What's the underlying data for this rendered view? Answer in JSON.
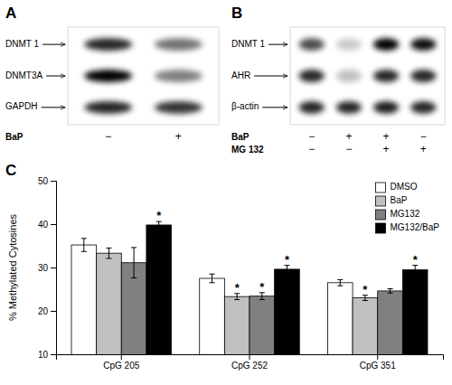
{
  "chart_data": [
    {
      "type": "blot",
      "title": "A",
      "categories": [
        "DNMT 1",
        "DNMT3A",
        "GAPDH"
      ],
      "conditions": [
        {
          "name": "BaP",
          "labels": [
            "−",
            "+"
          ]
        }
      ],
      "values": [
        [
          0.85,
          0.55
        ],
        [
          1.0,
          0.5
        ],
        [
          0.85,
          0.8
        ]
      ]
    },
    {
      "type": "blot",
      "title": "B",
      "categories": [
        "DNMT 1",
        "AHR",
        "β-actin"
      ],
      "conditions": [
        {
          "name": "BaP",
          "labels": [
            "−",
            "+",
            "+",
            "−"
          ]
        },
        {
          "name": "MG 132",
          "labels": [
            "−",
            "−",
            "+",
            "+"
          ]
        }
      ],
      "values": [
        [
          0.7,
          0.2,
          1.0,
          0.95
        ],
        [
          0.85,
          0.25,
          0.85,
          0.85
        ],
        [
          0.85,
          0.85,
          0.88,
          0.85
        ]
      ]
    },
    {
      "type": "bar",
      "title": "C",
      "categories": [
        "CpG 205",
        "CpG 252",
        "CpG 351"
      ],
      "ylabel": "% Methylated Cytosines",
      "series": [
        {
          "name": "DMSO",
          "color": "#ffffff",
          "values": [
            35.2,
            27.5,
            26.5
          ],
          "errors": [
            1.5,
            1.0,
            0.7
          ],
          "significant": [
            false,
            false,
            false
          ]
        },
        {
          "name": "BaP",
          "color": "#c0c0c0",
          "values": [
            33.3,
            23.3,
            23.0
          ],
          "errors": [
            1.2,
            0.7,
            0.6
          ],
          "significant": [
            false,
            true,
            true
          ]
        },
        {
          "name": "MG132",
          "color": "#808080",
          "values": [
            31.1,
            23.4,
            24.6
          ],
          "errors": [
            3.5,
            0.8,
            0.5
          ],
          "significant": [
            false,
            true,
            false
          ]
        },
        {
          "name": "MG132/BaP",
          "color": "#000000",
          "values": [
            39.8,
            29.6,
            29.5
          ],
          "errors": [
            0.8,
            0.9,
            1.0
          ],
          "significant": [
            true,
            true,
            true
          ]
        }
      ],
      "significance_label": "*",
      "ylim": [
        10,
        50
      ],
      "yticks": [
        10,
        20,
        30,
        40,
        50
      ],
      "legend": "upper right"
    }
  ]
}
